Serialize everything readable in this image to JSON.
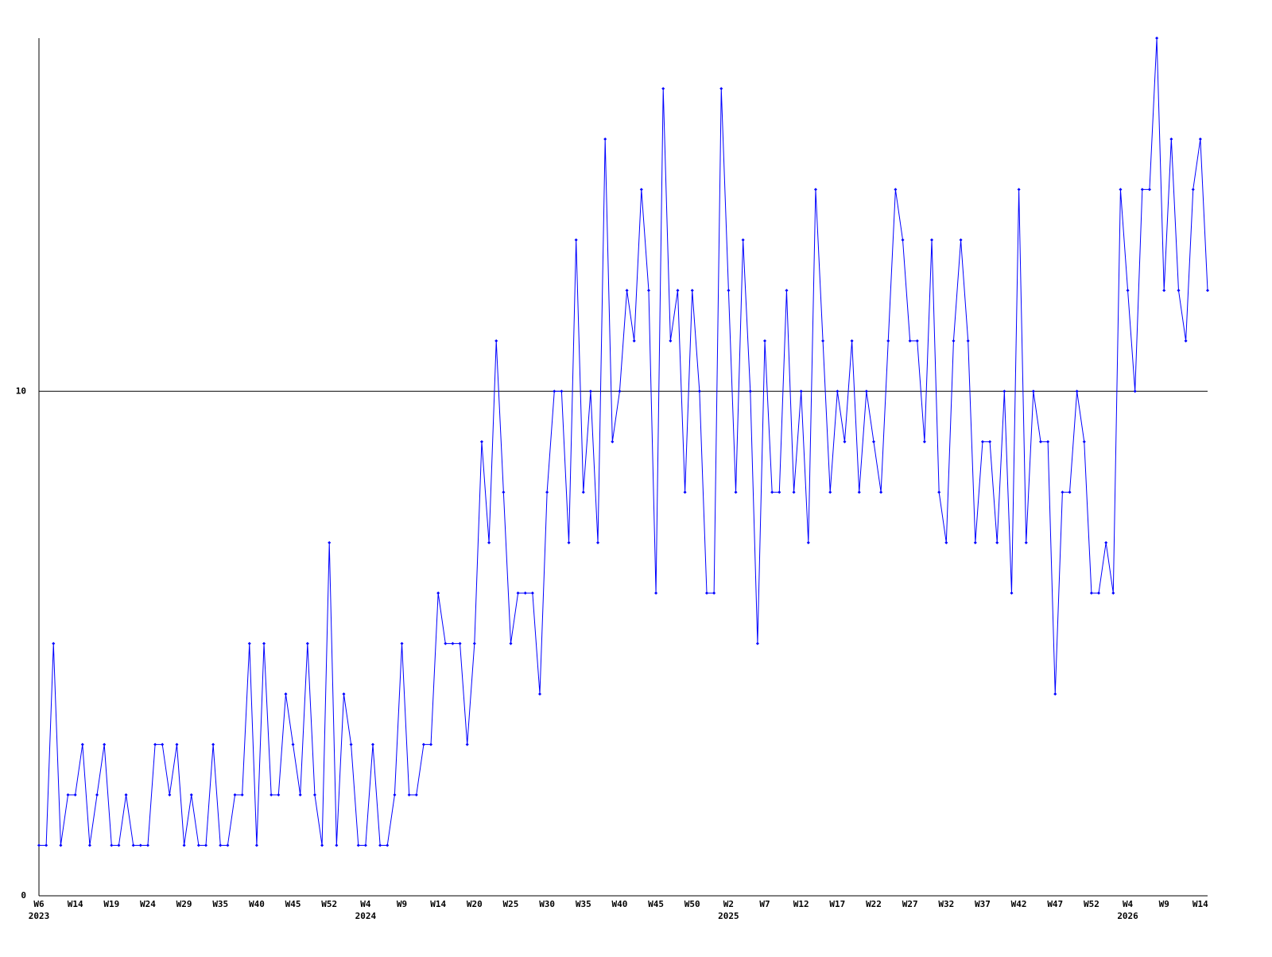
{
  "chart_data": {
    "type": "line",
    "categories": [
      "W6",
      null,
      null,
      null,
      null,
      "W14",
      null,
      null,
      null,
      null,
      "W19",
      null,
      null,
      null,
      null,
      "W24",
      null,
      null,
      null,
      null,
      "W29",
      null,
      null,
      null,
      null,
      "W35",
      null,
      null,
      null,
      null,
      "W40",
      null,
      null,
      null,
      null,
      "W45",
      null,
      null,
      null,
      null,
      "W52",
      null,
      null,
      null,
      null,
      "W4",
      null,
      null,
      null,
      null,
      "W9",
      null,
      null,
      null,
      null,
      "W14",
      null,
      null,
      null,
      null,
      "W20",
      null,
      null,
      null,
      null,
      "W25",
      null,
      null,
      null,
      null,
      "W30",
      null,
      null,
      null,
      null,
      "W35",
      null,
      null,
      null,
      null,
      "W40",
      null,
      null,
      null,
      null,
      "W45",
      null,
      null,
      null,
      null,
      "W50",
      null,
      null,
      null,
      null,
      "W2",
      null,
      null,
      null,
      null,
      "W7",
      null,
      null,
      null,
      null,
      "W12",
      null,
      null,
      null,
      null,
      "W17",
      null,
      null,
      null,
      null,
      "W22",
      null,
      null,
      null,
      null,
      "W27",
      null,
      null,
      null,
      null,
      "W32",
      null,
      null,
      null,
      null,
      "W37",
      null,
      null,
      null,
      null,
      "W42",
      null,
      null,
      null,
      null,
      "W47",
      null,
      null,
      null,
      null,
      "W52",
      null,
      null,
      null,
      null,
      "W4",
      null,
      null,
      null,
      null,
      "W9",
      null,
      null,
      null,
      null,
      "W14",
      null
    ],
    "years": [
      "2023",
      null,
      null,
      null,
      null,
      null,
      null,
      null,
      null,
      null,
      null,
      null,
      null,
      null,
      null,
      null,
      null,
      null,
      null,
      null,
      null,
      null,
      null,
      null,
      null,
      null,
      null,
      null,
      null,
      null,
      null,
      null,
      null,
      null,
      null,
      null,
      null,
      null,
      null,
      null,
      null,
      null,
      null,
      null,
      null,
      "2024",
      null,
      null,
      null,
      null,
      null,
      null,
      null,
      null,
      null,
      null,
      null,
      null,
      null,
      null,
      null,
      null,
      null,
      null,
      null,
      null,
      null,
      null,
      null,
      null,
      null,
      null,
      null,
      null,
      null,
      null,
      null,
      null,
      null,
      null,
      null,
      null,
      null,
      null,
      null,
      null,
      null,
      null,
      null,
      null,
      null,
      null,
      null,
      null,
      null,
      "2025",
      null,
      null,
      null,
      null,
      null,
      null,
      null,
      null,
      null,
      null,
      null,
      null,
      null,
      null,
      null,
      null,
      null,
      null,
      null,
      null,
      null,
      null,
      null,
      null,
      null,
      null,
      null,
      null,
      null,
      null,
      null,
      null,
      null,
      null,
      null,
      null,
      null,
      null,
      null,
      null,
      null,
      null,
      null,
      null,
      null,
      null,
      null,
      null,
      null,
      null,
      null,
      null,
      null,
      null,
      "2026",
      null,
      null,
      null,
      null,
      null,
      null,
      null,
      null,
      null,
      null,
      null
    ],
    "series": [
      {
        "color": "#0000ff",
        "values": [
          1,
          1,
          5,
          1,
          2,
          2,
          3,
          1,
          2,
          3,
          1,
          1,
          2,
          1,
          1,
          1,
          3,
          3,
          2,
          3,
          1,
          2,
          1,
          1,
          3,
          1,
          1,
          2,
          2,
          5,
          1,
          5,
          2,
          2,
          4,
          3,
          2,
          5,
          2,
          1,
          7,
          1,
          4,
          3,
          1,
          1,
          3,
          1,
          1,
          2,
          5,
          2,
          2,
          3,
          3,
          6,
          5,
          5,
          5,
          3,
          5,
          9,
          7,
          11,
          8,
          5,
          6,
          6,
          6,
          4,
          8,
          10,
          10,
          7,
          13,
          8,
          10,
          7,
          15,
          9,
          10,
          12,
          11,
          14,
          12,
          6,
          16,
          11,
          12,
          8,
          12,
          10,
          6,
          6,
          16,
          12,
          8,
          13,
          10,
          5,
          11,
          8,
          8,
          12,
          8,
          10,
          7,
          14,
          11,
          8,
          10,
          9,
          11,
          8,
          10,
          9,
          8,
          11,
          14,
          13,
          11,
          11,
          9,
          13,
          8,
          7,
          11,
          13,
          11,
          7,
          9,
          9,
          7,
          10,
          6,
          14,
          7,
          10,
          9,
          9,
          4,
          8,
          8,
          10,
          9,
          6,
          6,
          7,
          6,
          14,
          12,
          10,
          14,
          14,
          17,
          12,
          15,
          12,
          11,
          14,
          15,
          12
        ]
      }
    ],
    "ylim": [
      0,
      17
    ],
    "yticks": [
      0,
      10
    ],
    "grid": true
  }
}
